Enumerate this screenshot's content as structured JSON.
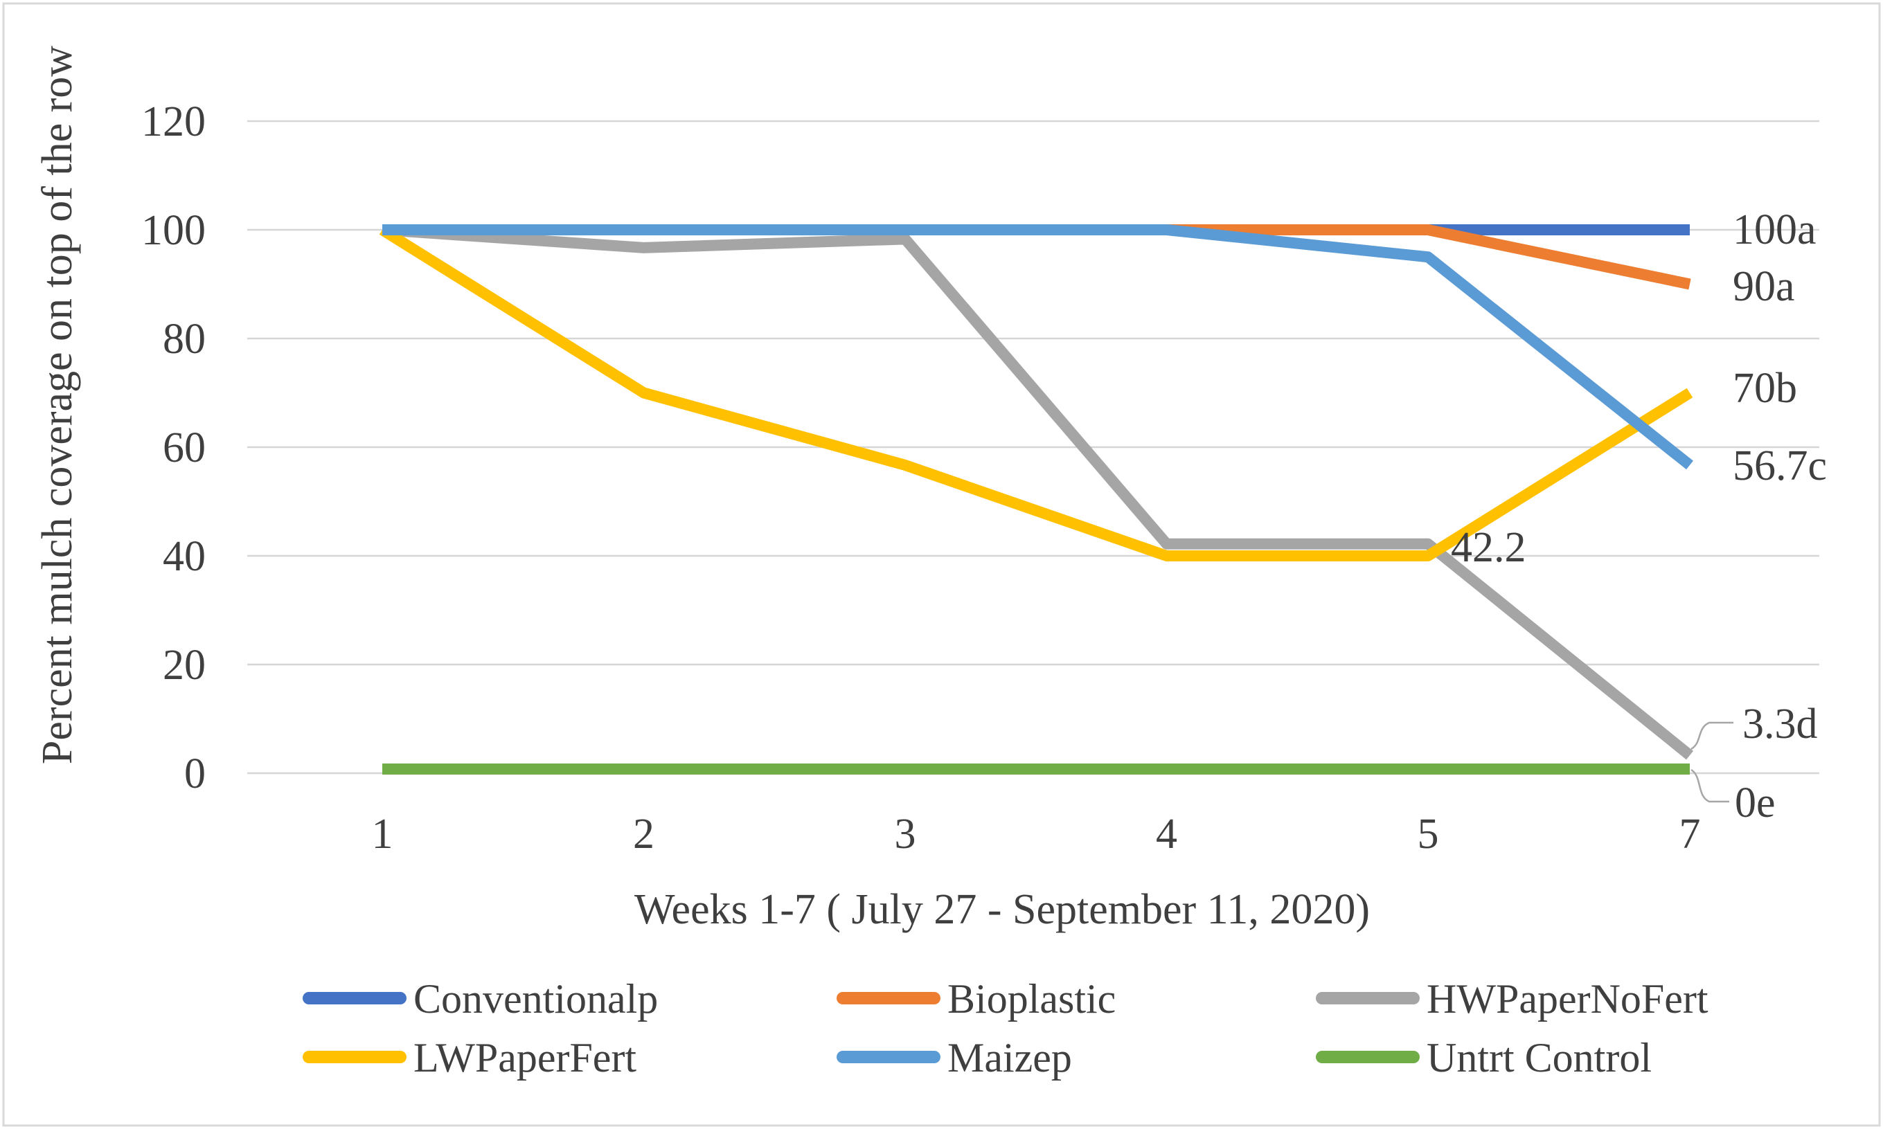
{
  "chart_data": {
    "type": "line",
    "title": "",
    "xlabel": "Weeks 1-7 ( July 27 - September 11, 2020)",
    "ylabel": "Percent mulch coverage on top of the row",
    "x_tick_labels": [
      "1",
      "2",
      "3",
      "4",
      "5",
      "7"
    ],
    "y_tick_labels": [
      "0",
      "20",
      "40",
      "60",
      "80",
      "100",
      "120"
    ],
    "ylim": [
      0,
      130
    ],
    "grid": true,
    "legend_position": "bottom",
    "series": [
      {
        "name": "Conventionalp",
        "color": "#4472C4",
        "values": [
          100,
          100,
          100,
          100,
          100,
          100
        ],
        "end_label": "100a"
      },
      {
        "name": "Bioplastic",
        "color": "#ED7D31",
        "values": [
          100,
          100,
          100,
          100,
          100,
          90
        ],
        "end_label": "90a"
      },
      {
        "name": "HWPaperNoFert",
        "color": "#A5A5A5",
        "values": [
          100,
          96.7,
          98.3,
          42.2,
          42.2,
          3.3
        ],
        "end_label": "3.3d",
        "point_label": {
          "x_index": 4,
          "text": "42.2"
        }
      },
      {
        "name": "LWPaperFert",
        "color": "#FFC000",
        "values": [
          100,
          70,
          56.7,
          40,
          40,
          70
        ],
        "end_label": "70b"
      },
      {
        "name": "Maizep",
        "color": "#5B9BD5",
        "values": [
          100,
          100,
          100,
          100,
          95,
          56.7
        ],
        "end_label": "56.7c"
      },
      {
        "name": "Untrt Control",
        "color": "#70AD47",
        "values": [
          0,
          0,
          0,
          0,
          0,
          0
        ],
        "end_label": "0e"
      }
    ],
    "legend_rows": [
      [
        0,
        1,
        2
      ],
      [
        3,
        4,
        5
      ]
    ]
  }
}
